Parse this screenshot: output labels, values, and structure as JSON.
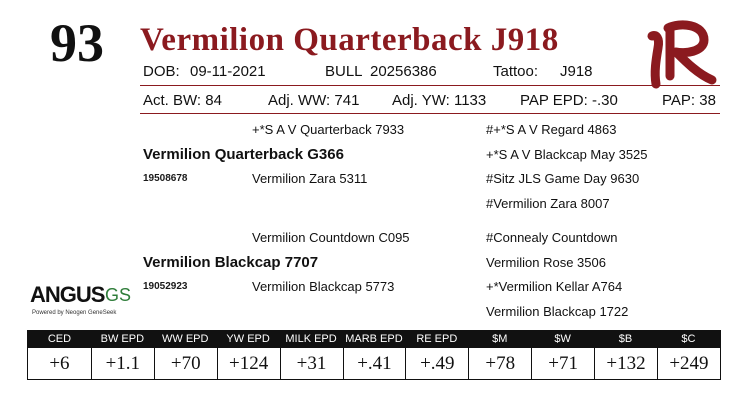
{
  "lot_number": "93",
  "title": "Vermilion Quarterback J918",
  "details": {
    "dob_label": "DOB:",
    "dob": "09-11-2021",
    "sex": "BULL",
    "registration": "20256386",
    "tattoo_label": "Tattoo:",
    "tattoo": "J918"
  },
  "performance": {
    "act_bw": "Act. BW: 84",
    "adj_ww": "Adj. WW: 741",
    "adj_yw": "Adj. YW: 1133",
    "pap_epd": "PAP EPD: -.30",
    "pap": "PAP: 38"
  },
  "pedigree": {
    "sire": "Vermilion Quarterback G366",
    "sire_reg": "19508678",
    "sire_sire": "+*S A V Quarterback 7933",
    "sire_dam": "Vermilion Zara 5311",
    "sss": "#+*S A V Regard 4863",
    "ssd": "+*S A V Blackcap May 3525",
    "sds": "#Sitz JLS Game Day 9630",
    "sdd": "#Vermilion Zara 8007",
    "dam": "Vermilion Blackcap 7707",
    "dam_reg": "19052923",
    "dam_sire": "Vermilion Countdown C095",
    "dam_dam": "Vermilion Blackcap 5773",
    "dss": "#Connealy Countdown",
    "dsd": "Vermilion Rose 3506",
    "dds": "+*Vermilion Kellar A764",
    "ddd": "Vermilion Blackcap 1722"
  },
  "angus_logo": {
    "word1": "ANGUS",
    "word2": "GS",
    "tagline": "Powered by Neogen GeneSeek"
  },
  "epds": [
    {
      "label": "CED",
      "value": "+6"
    },
    {
      "label": "BW EPD",
      "value": "+1.1"
    },
    {
      "label": "WW EPD",
      "value": "+70"
    },
    {
      "label": "YW EPD",
      "value": "+124"
    },
    {
      "label": "MILK EPD",
      "value": "+31"
    },
    {
      "label": "MARB EPD",
      "value": "+.41"
    },
    {
      "label": "RE EPD",
      "value": "+.49"
    },
    {
      "label": "$M",
      "value": "+78"
    },
    {
      "label": "$W",
      "value": "+71"
    },
    {
      "label": "$B",
      "value": "+132"
    },
    {
      "label": "$C",
      "value": "+249"
    }
  ],
  "colors": {
    "title": "#8b1a1f",
    "brand_logo": "#8b1a1f",
    "angus_gs": "#2f7d3a"
  }
}
